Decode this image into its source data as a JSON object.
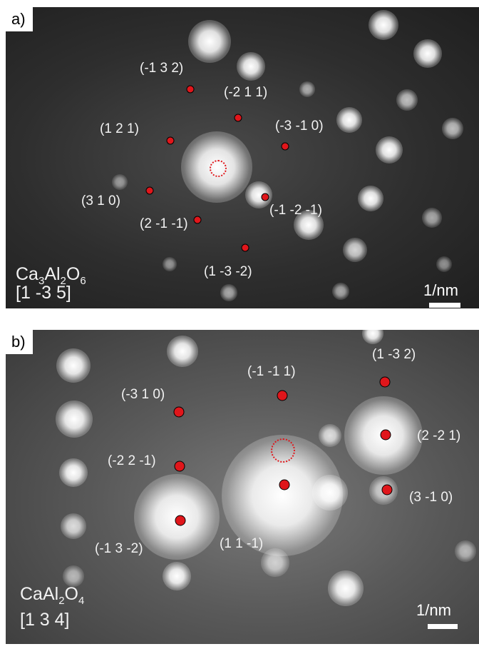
{
  "panel_a": {
    "tag": "a)",
    "compound": {
      "pre": "Ca",
      "s1": "3",
      "mid": "Al",
      "s2": "2",
      "tail": "O",
      "s3": "6"
    },
    "zone_axis": "[1 -3 5]",
    "scale": "1/nm",
    "labels": [
      "(-1 3 2)",
      "(-2 1 1)",
      "(1 2 1)",
      "(-3 -1 0)",
      "(3 1 0)",
      "(-1 -2 -1)",
      "(2 -1 -1)",
      "(1 -3 -2)"
    ]
  },
  "panel_b": {
    "tag": "b)",
    "compound": {
      "pre": "CaAl",
      "s1": "2",
      "mid": "O",
      "s2": "4"
    },
    "zone_axis": "[1 3 4]",
    "scale": "1/nm",
    "labels": [
      "(1 -3 2)",
      "(-1 -1 1)",
      "(-3 1 0)",
      "(2 -2 1)",
      "(-2 2 -1)",
      "(3 -1 0)",
      "(-1 3 -2)",
      "(1 1 -1)"
    ]
  },
  "colors": {
    "spot": "#e0161b",
    "label": "#f2f2f2"
  }
}
